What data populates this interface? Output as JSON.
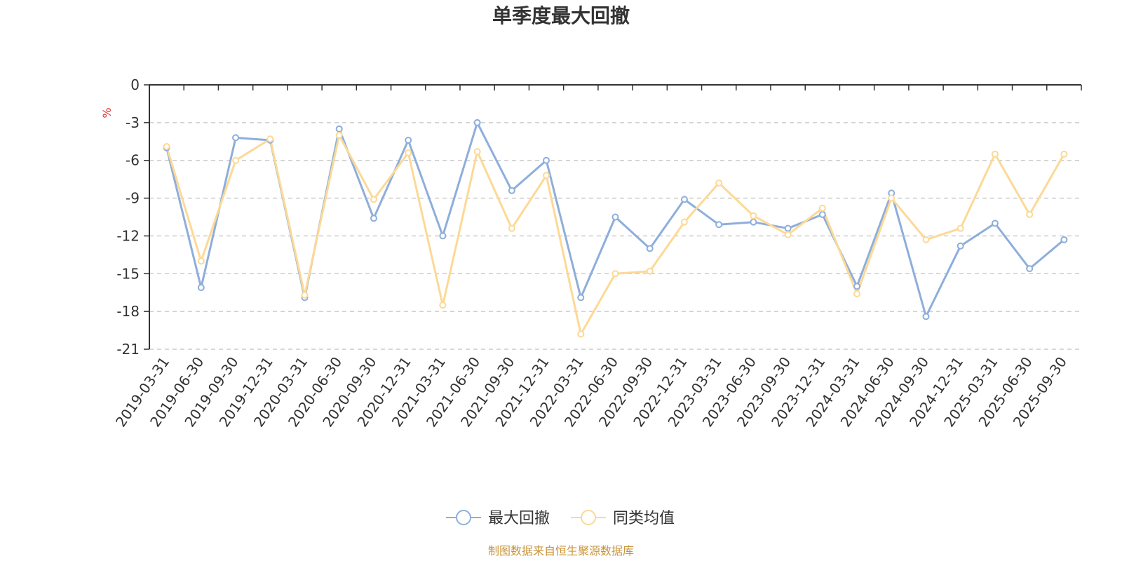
{
  "chart_data": {
    "type": "line",
    "title": "单季度最大回撤",
    "ylabel": "%",
    "ylim": [
      -21,
      0
    ],
    "yticks": [
      0,
      -3,
      -6,
      -9,
      -12,
      -15,
      -18,
      -21
    ],
    "grid": true,
    "legend_position": "bottom",
    "categories": [
      "2019-03-31",
      "2019-06-30",
      "2019-09-30",
      "2019-12-31",
      "2020-03-31",
      "2020-06-30",
      "2020-09-30",
      "2020-12-31",
      "2021-03-31",
      "2021-06-30",
      "2021-09-30",
      "2021-12-31",
      "2022-03-31",
      "2022-06-30",
      "2022-09-30",
      "2022-12-31",
      "2023-03-31",
      "2023-06-30",
      "2023-09-30",
      "2023-12-31",
      "2024-03-31",
      "2024-06-30",
      "2024-09-30",
      "2024-12-31",
      "2025-03-31",
      "2025-06-30",
      "2025-09-30"
    ],
    "series": [
      {
        "name": "最大回撤",
        "color": "#8eaedb",
        "values": [
          -5.0,
          -16.1,
          -4.2,
          -4.4,
          -16.9,
          -3.5,
          -10.6,
          -4.4,
          -12.0,
          -3.0,
          -8.4,
          -6.0,
          -16.9,
          -10.5,
          -13.0,
          -9.1,
          -11.1,
          -10.9,
          -11.4,
          -10.3,
          -16.0,
          -8.6,
          -18.4,
          -12.8,
          -11.0,
          -14.6,
          -12.3
        ]
      },
      {
        "name": "同类均值",
        "color": "#fcd996",
        "values": [
          -4.9,
          -14.0,
          -6.0,
          -4.3,
          -16.7,
          -4.0,
          -9.1,
          -5.4,
          -17.5,
          -5.3,
          -11.4,
          -7.2,
          -19.8,
          -15.0,
          -14.8,
          -10.9,
          -7.8,
          -10.4,
          -11.9,
          -9.8,
          -16.6,
          -9.0,
          -12.3,
          -11.4,
          -5.5,
          -10.3,
          -5.5
        ]
      }
    ]
  },
  "footer": {
    "source": "制图数据来自恒生聚源数据库",
    "source_color": "#c9943a"
  },
  "colors": {
    "unit_label": "#e03030",
    "axis": "#333333",
    "grid": "#cccccc"
  }
}
